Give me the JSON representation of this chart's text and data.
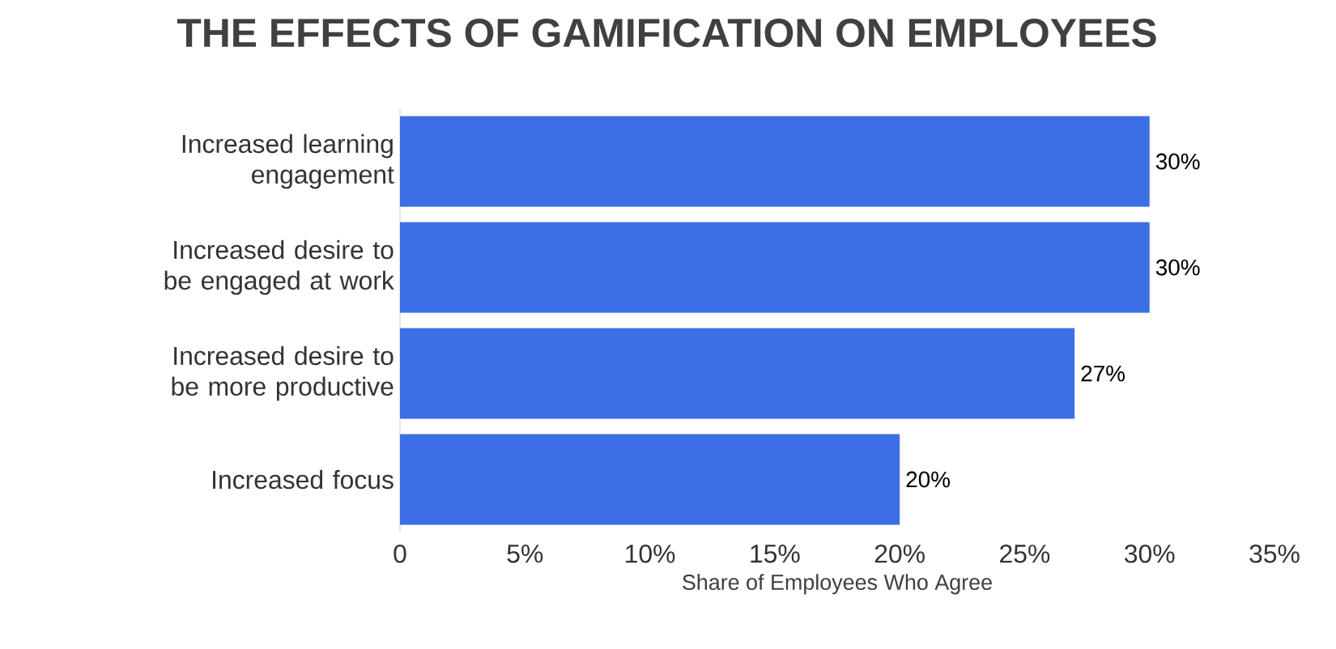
{
  "chart_data": {
    "type": "bar",
    "orientation": "horizontal",
    "title": "THE EFFECTS OF GAMIFICATION ON EMPLOYEES",
    "xlabel": "Share of Employees Who Agree",
    "categories": [
      "Increased learning engagement",
      "Increased desire to be engaged at work",
      "Increased desire to be more productive",
      "Increased focus"
    ],
    "values": [
      30,
      30,
      27,
      20
    ],
    "value_labels": [
      "30%",
      "30%",
      "27%",
      "20%"
    ],
    "color": "#3c6ee6",
    "xlim": [
      0,
      35
    ],
    "xticks": [
      0,
      {
        "value": 5,
        "label": "5%"
      },
      {
        "value": 10,
        "label": "10%"
      },
      {
        "value": 15,
        "label": "15%"
      },
      {
        "value": 20,
        "label": "20%"
      },
      {
        "value": 25,
        "label": "25%"
      },
      {
        "value": 30,
        "label": "30%"
      },
      {
        "value": 35,
        "label": "35%"
      }
    ],
    "grid": false
  }
}
